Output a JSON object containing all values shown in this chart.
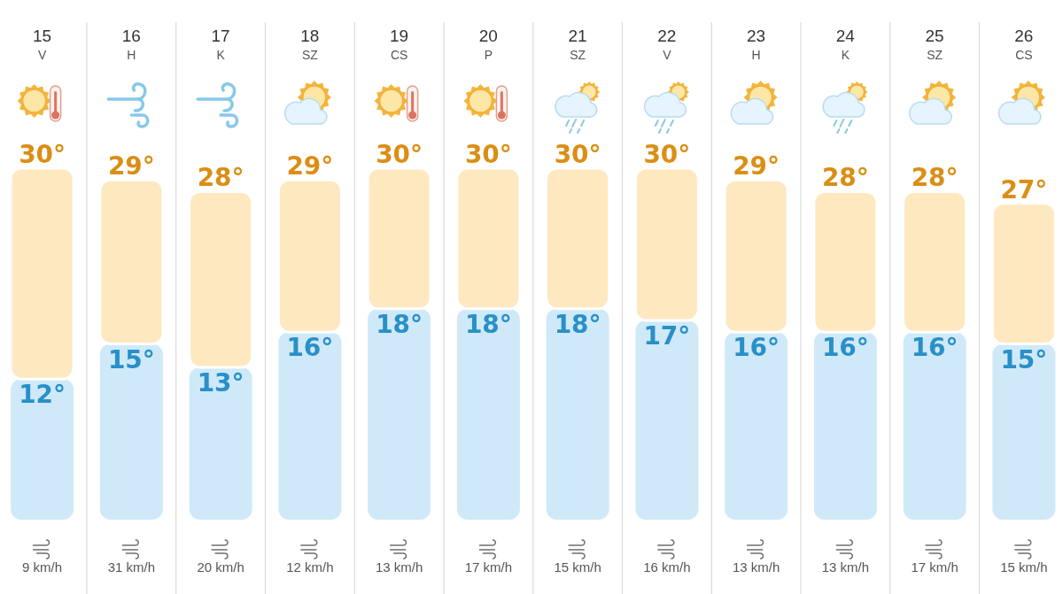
{
  "chart_data": {
    "type": "bar",
    "stacked": true,
    "categories": [
      "15\nV",
      "16\nH",
      "17\nK",
      "18\nSZ",
      "19\nCS",
      "20\nP",
      "21\nSZ",
      "22\nV",
      "23\nH",
      "24\nK",
      "25\nSZ",
      "26\nCS"
    ],
    "series": [
      {
        "color": "#cfe9f9",
        "values": [
          12,
          15,
          13,
          16,
          18,
          18,
          18,
          17,
          16,
          16,
          16,
          15
        ],
        "value_labels": [
          "12°",
          "15°",
          "13°",
          "16°",
          "18°",
          "18°",
          "18°",
          "17°",
          "16°",
          "16°",
          "16°",
          "15°"
        ]
      },
      {
        "color": "#fee8c0",
        "values": [
          18,
          14,
          15,
          13,
          12,
          12,
          12,
          13,
          13,
          12,
          12,
          12
        ]
      }
    ],
    "totals": [
      "30°",
      "29°",
      "28°",
      "29°",
      "30°",
      "30°",
      "30°",
      "30°",
      "29°",
      "28°",
      "28°",
      "27°"
    ],
    "tick_labels": "x",
    "grid": "x",
    "annotations": [
      "9 km/h",
      "31 km/h",
      "20 km/h",
      "12 km/h",
      "13 km/h",
      "17 km/h",
      "15 km/h",
      "16 km/h",
      "13 km/h",
      "13 km/h",
      "17 km/h",
      "15 km/h"
    ]
  }
}
